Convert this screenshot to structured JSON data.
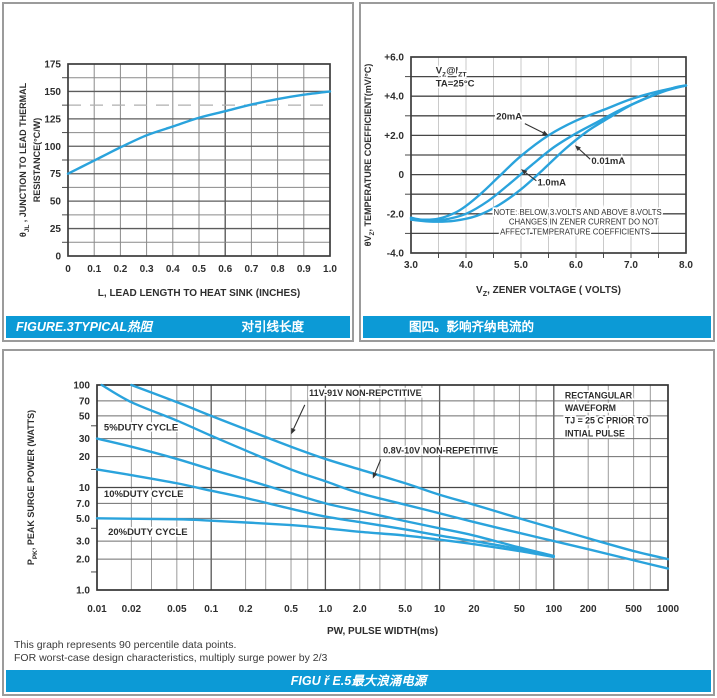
{
  "colors": {
    "curve_blue": "#2aa3dc",
    "caption_bar_blue": "#0c9ad6",
    "panel_border_gray": "#9b9b9b",
    "text_dark": "#2e2e2e"
  },
  "panels": {
    "fig3": {
      "caption_left": "FIGURE.3TYPICAL热阻",
      "caption_right": "对引线长度"
    },
    "fig4": {
      "caption": "图四。影响齐纳电流的"
    },
    "fig5": {
      "caption": "FIGU ř E.5最大浪涌电源",
      "footnote1": "This graph represents 90 percentile data points.",
      "footnote2": "FOR worst-case design characteristics, multiply surge power by 2/3"
    }
  },
  "chart_data": [
    {
      "id": "fig3",
      "type": "line",
      "title": "FIGURE.3 TYPICAL 热阻 对引线长度",
      "xlabel": "L, LEAD LENGTH TO HEAT SINK (INCHES)",
      "ylabel_lines": [
        "θ_JL_ , JUNCTION TO LEAD THERMAL",
        "RESISTANCE(°C/W)"
      ],
      "xscale": "linear",
      "yscale": "linear",
      "xlim": [
        0,
        1.0
      ],
      "ylim": [
        0,
        175
      ],
      "xticks": {
        "values": [
          0,
          0.1,
          0.2,
          0.3,
          0.4,
          0.5,
          0.6,
          0.7,
          0.8,
          0.9,
          1.0
        ],
        "labels": [
          "0",
          "0.1",
          "0.2",
          "0.3",
          "0.4",
          "0.5",
          "0.6",
          "0.7",
          "0.8",
          "0.9",
          "1.0"
        ]
      },
      "yticks": {
        "values": [
          0,
          25,
          50,
          75,
          100,
          125,
          150,
          175
        ],
        "labels": [
          "0",
          "25",
          "50",
          "75",
          "100",
          "125",
          "150",
          "175"
        ]
      },
      "xgrid_minor": [
        0.1,
        0.2,
        0.3,
        0.4,
        0.5,
        0.7,
        0.8,
        0.9
      ],
      "xgrid_major": [
        0.6
      ],
      "ygrid_minor": [
        12.5,
        37.5,
        62.5,
        87.5,
        112.5,
        162.5
      ],
      "ygrid_major": [
        25,
        50,
        75,
        100,
        125,
        150
      ],
      "ygrid_dashed": [
        137.5
      ],
      "series": [
        {
          "name": "junction-to-lead-thermal-resistance",
          "x": [
            0,
            0.05,
            0.1,
            0.15,
            0.2,
            0.3,
            0.4,
            0.5,
            0.6,
            0.7,
            0.8,
            0.9,
            1.0
          ],
          "y": [
            75,
            81,
            87,
            93,
            99,
            110,
            118,
            126,
            132,
            138,
            143,
            147,
            150
          ]
        }
      ],
      "annotations": [],
      "arrows": []
    },
    {
      "id": "fig4",
      "type": "line",
      "title": "图四。影响齐纳电流的",
      "xlabel": "V_Z_, ZENER VOLTAGE ( VOLTS)",
      "ylabel_lines": [
        "θV_Z_,  TEMPERATURE COEFFICIENT(mV/°C)"
      ],
      "xscale": "linear",
      "yscale": "linear",
      "xlim": [
        3.0,
        8.0
      ],
      "ylim": [
        -4.0,
        6.0
      ],
      "xticks": {
        "values": [
          3,
          4,
          5,
          6,
          7,
          8
        ],
        "labels": [
          "3.0",
          "4.0",
          "5.0",
          "6.0",
          "7.0",
          "8.0"
        ]
      },
      "yticks": {
        "values": [
          -4,
          -2,
          0,
          2,
          4,
          6
        ],
        "labels": [
          "-4.0",
          "-2.0",
          "0",
          "+2.0",
          "+4.0",
          "+6.0"
        ]
      },
      "xgrid_minor": [
        3.5,
        4.0,
        4.5,
        5.0,
        5.5,
        6.0,
        6.5,
        7.0,
        7.5
      ],
      "xgrid_major": [],
      "ygrid_minor": [],
      "ygrid_major": [
        -3,
        -2,
        -1,
        0,
        1,
        2,
        3,
        4,
        5
      ],
      "ygrid_dashed": [],
      "series": [
        {
          "name": "20mA",
          "x": [
            3.0,
            3.2,
            3.5,
            3.8,
            4.0,
            4.3,
            4.6,
            5.0,
            5.5,
            6.0,
            6.5,
            7.0,
            7.5,
            8.0
          ],
          "y": [
            -2.2,
            -2.3,
            -2.25,
            -1.95,
            -1.6,
            -0.9,
            -0.1,
            0.95,
            2.0,
            2.75,
            3.3,
            3.85,
            4.25,
            4.55
          ]
        },
        {
          "name": "1.0mA",
          "x": [
            3.0,
            3.3,
            3.6,
            4.0,
            4.4,
            4.8,
            5.2,
            5.6,
            6.0,
            6.4,
            6.8,
            7.2,
            7.6,
            8.0
          ],
          "y": [
            -2.25,
            -2.35,
            -2.3,
            -2.0,
            -1.35,
            -0.45,
            0.5,
            1.4,
            2.1,
            2.7,
            3.3,
            3.8,
            4.25,
            4.55
          ]
        },
        {
          "name": "0.01mA",
          "x": [
            3.0,
            3.4,
            3.8,
            4.2,
            4.6,
            5.0,
            5.4,
            5.8,
            6.2,
            6.6,
            7.0,
            7.4,
            7.8,
            8.0
          ],
          "y": [
            -2.3,
            -2.4,
            -2.35,
            -2.1,
            -1.55,
            -0.75,
            0.25,
            1.3,
            2.2,
            2.9,
            3.55,
            4.05,
            4.45,
            4.55
          ]
        }
      ],
      "annotations": [
        {
          "text": "V_Z_@I_ZT_",
          "x": 3.45,
          "y": 5.15,
          "anchor": "start",
          "size": 9.5,
          "bold": true
        },
        {
          "text": "TA=25°C",
          "x": 3.45,
          "y": 4.5,
          "anchor": "start",
          "size": 9.5,
          "bold": true
        },
        {
          "text": "20mA",
          "x": 5.02,
          "y": 2.8,
          "anchor": "end",
          "size": 9.5,
          "bold": true
        },
        {
          "text": "0.01mA",
          "x": 6.28,
          "y": 0.55,
          "anchor": "start",
          "size": 9.5,
          "bold": true
        },
        {
          "text": "1.0mA",
          "x": 5.3,
          "y": -0.55,
          "anchor": "start",
          "size": 9.5,
          "bold": true
        },
        {
          "text": "NOTE: BELOW 3 VOLTS AND ABOVE 8 VOLTS",
          "x": 4.5,
          "y": -2.05,
          "anchor": "start",
          "size": 7.8,
          "bold": false
        },
        {
          "text": "CHANGES IN ZENER CURRENT DO NOT",
          "x": 4.78,
          "y": -2.55,
          "anchor": "start",
          "size": 7.8,
          "bold": false
        },
        {
          "text": "AFFECT TEMPERATURE COEFFICIENTS",
          "x": 4.62,
          "y": -3.05,
          "anchor": "start",
          "size": 7.8,
          "bold": false
        }
      ],
      "arrows": [
        {
          "x1": 5.07,
          "y1": 2.6,
          "x2": 5.5,
          "y2": 2.0
        },
        {
          "x1": 6.26,
          "y1": 0.78,
          "x2": 5.98,
          "y2": 1.5
        },
        {
          "x1": 5.28,
          "y1": -0.32,
          "x2": 5.0,
          "y2": 0.28
        }
      ]
    },
    {
      "id": "fig5",
      "type": "line",
      "title": "FIGU ř E.5最大浪涌电源",
      "xlabel": "PW, PULSE WIDTH(ms)",
      "ylabel_lines": [
        "P_PK_, PEAK SURGE POWER (WATTS)"
      ],
      "xscale": "log",
      "yscale": "log",
      "xlim": [
        0.01,
        1000
      ],
      "ylim": [
        1,
        100
      ],
      "xticks": {
        "values": [
          0.01,
          0.02,
          0.05,
          0.1,
          0.2,
          0.5,
          1,
          2,
          5,
          10,
          20,
          50,
          100,
          200,
          500,
          1000
        ],
        "labels": [
          "0.01",
          "0.02",
          "0.05",
          "0.1",
          "0.2",
          "0.5",
          "1.0",
          "2.0",
          "5.0",
          "10",
          "20",
          "50",
          "100",
          "200",
          "500",
          "1000"
        ]
      },
      "yticks": {
        "values": [
          100,
          70,
          50,
          30,
          20,
          10,
          7,
          5,
          3,
          2,
          1
        ],
        "labels": [
          "100",
          "70",
          "50",
          "30",
          "20",
          "10",
          "7.0",
          "5.0",
          "3.0",
          "2.0",
          "1.0"
        ]
      },
      "xgrid_minor": [
        0.02,
        0.03,
        0.05,
        0.07,
        0.2,
        0.3,
        0.5,
        0.7,
        2,
        3,
        5,
        7,
        20,
        30,
        50,
        70,
        200,
        300,
        500,
        700
      ],
      "xgrid_major": [
        0.1,
        1,
        10,
        100
      ],
      "ygrid_minor": [
        2,
        3,
        5,
        7,
        20,
        30,
        50,
        70
      ],
      "ygrid_major": [
        10
      ],
      "ygrid_dashed": [],
      "series": [
        {
          "name": "11V-91V NON-REPCTITIVE",
          "x": [
            0.02,
            0.05,
            0.1,
            0.2,
            0.5,
            1,
            2,
            5,
            10,
            20,
            50,
            100,
            200,
            500,
            1000
          ],
          "y": [
            100,
            68,
            50,
            37,
            25,
            19,
            15,
            11,
            8.5,
            6.8,
            5.0,
            4.0,
            3.2,
            2.4,
            2.0
          ]
        },
        {
          "name": "0.8V-10V NON-REPETITIVE",
          "x": [
            0.011,
            0.02,
            0.05,
            0.1,
            0.2,
            0.5,
            1,
            2,
            5,
            10,
            20,
            50,
            100,
            200,
            500,
            1000
          ],
          "y": [
            100,
            68,
            45,
            32,
            23,
            15,
            11.5,
            8.8,
            6.8,
            5.6,
            4.6,
            3.6,
            3.0,
            2.5,
            1.95,
            1.62
          ]
        },
        {
          "name": "5% DUTY CYCLE",
          "x": [
            0.01,
            0.02,
            0.05,
            0.1,
            0.2,
            0.5,
            1,
            2,
            5,
            10,
            20,
            50,
            100
          ],
          "y": [
            30,
            25,
            19,
            15,
            12,
            8.8,
            7.0,
            5.9,
            4.7,
            4.0,
            3.4,
            2.6,
            2.15
          ]
        },
        {
          "name": "10% DUTY CYCLE",
          "x": [
            0.01,
            0.02,
            0.05,
            0.1,
            0.2,
            0.5,
            1,
            2,
            5,
            10,
            20,
            50,
            100
          ],
          "y": [
            15,
            13.2,
            11,
            9.3,
            7.9,
            6.2,
            5.2,
            4.6,
            3.9,
            3.4,
            3.0,
            2.5,
            2.12
          ]
        },
        {
          "name": "20% DUTY CYCLE",
          "x": [
            0.01,
            0.05,
            0.1,
            0.5,
            1,
            2,
            5,
            10,
            20,
            50,
            100
          ],
          "y": [
            5.0,
            4.9,
            4.75,
            4.3,
            4.0,
            3.7,
            3.4,
            3.1,
            2.8,
            2.4,
            2.1
          ]
        }
      ],
      "annotations": [
        {
          "text": "5%DUTY  CYCLE",
          "x": 0.0115,
          "y": 36,
          "anchor": "start",
          "size": 9.5,
          "bold": true
        },
        {
          "text": "10%DUTY  CYCLE",
          "x": 0.0115,
          "y": 8.1,
          "anchor": "start",
          "size": 9.5,
          "bold": true
        },
        {
          "text": "20%DUTY  CYCLE",
          "x": 0.0125,
          "y": 3.45,
          "anchor": "start",
          "size": 9.5,
          "bold": true
        },
        {
          "text": "11V-91V NON-REPCTITIVE",
          "x": 0.72,
          "y": 78,
          "anchor": "start",
          "size": 9,
          "bold": true
        },
        {
          "text": "0.8V-10V NON-REPETITIVE",
          "x": 3.2,
          "y": 21.5,
          "anchor": "start",
          "size": 9,
          "bold": true
        },
        {
          "text": "RECTANGULAR",
          "x": 125,
          "y": 74,
          "anchor": "start",
          "size": 8.8,
          "bold": true
        },
        {
          "text": "WAVEFORM",
          "x": 125,
          "y": 56,
          "anchor": "start",
          "size": 8.8,
          "bold": true
        },
        {
          "text": "TJ = 25 C PRIOR TO",
          "x": 125,
          "y": 42,
          "anchor": "start",
          "size": 8.8,
          "bold": true
        },
        {
          "text": "INTIAL PULSE",
          "x": 125,
          "y": 31.5,
          "anchor": "start",
          "size": 8.8,
          "bold": true
        }
      ],
      "arrows": [
        {
          "x1": 0.66,
          "y1": 64,
          "x2": 0.5,
          "y2": 33
        },
        {
          "x1": 3.05,
          "y1": 18.8,
          "x2": 2.6,
          "y2": 12.2
        }
      ]
    }
  ]
}
